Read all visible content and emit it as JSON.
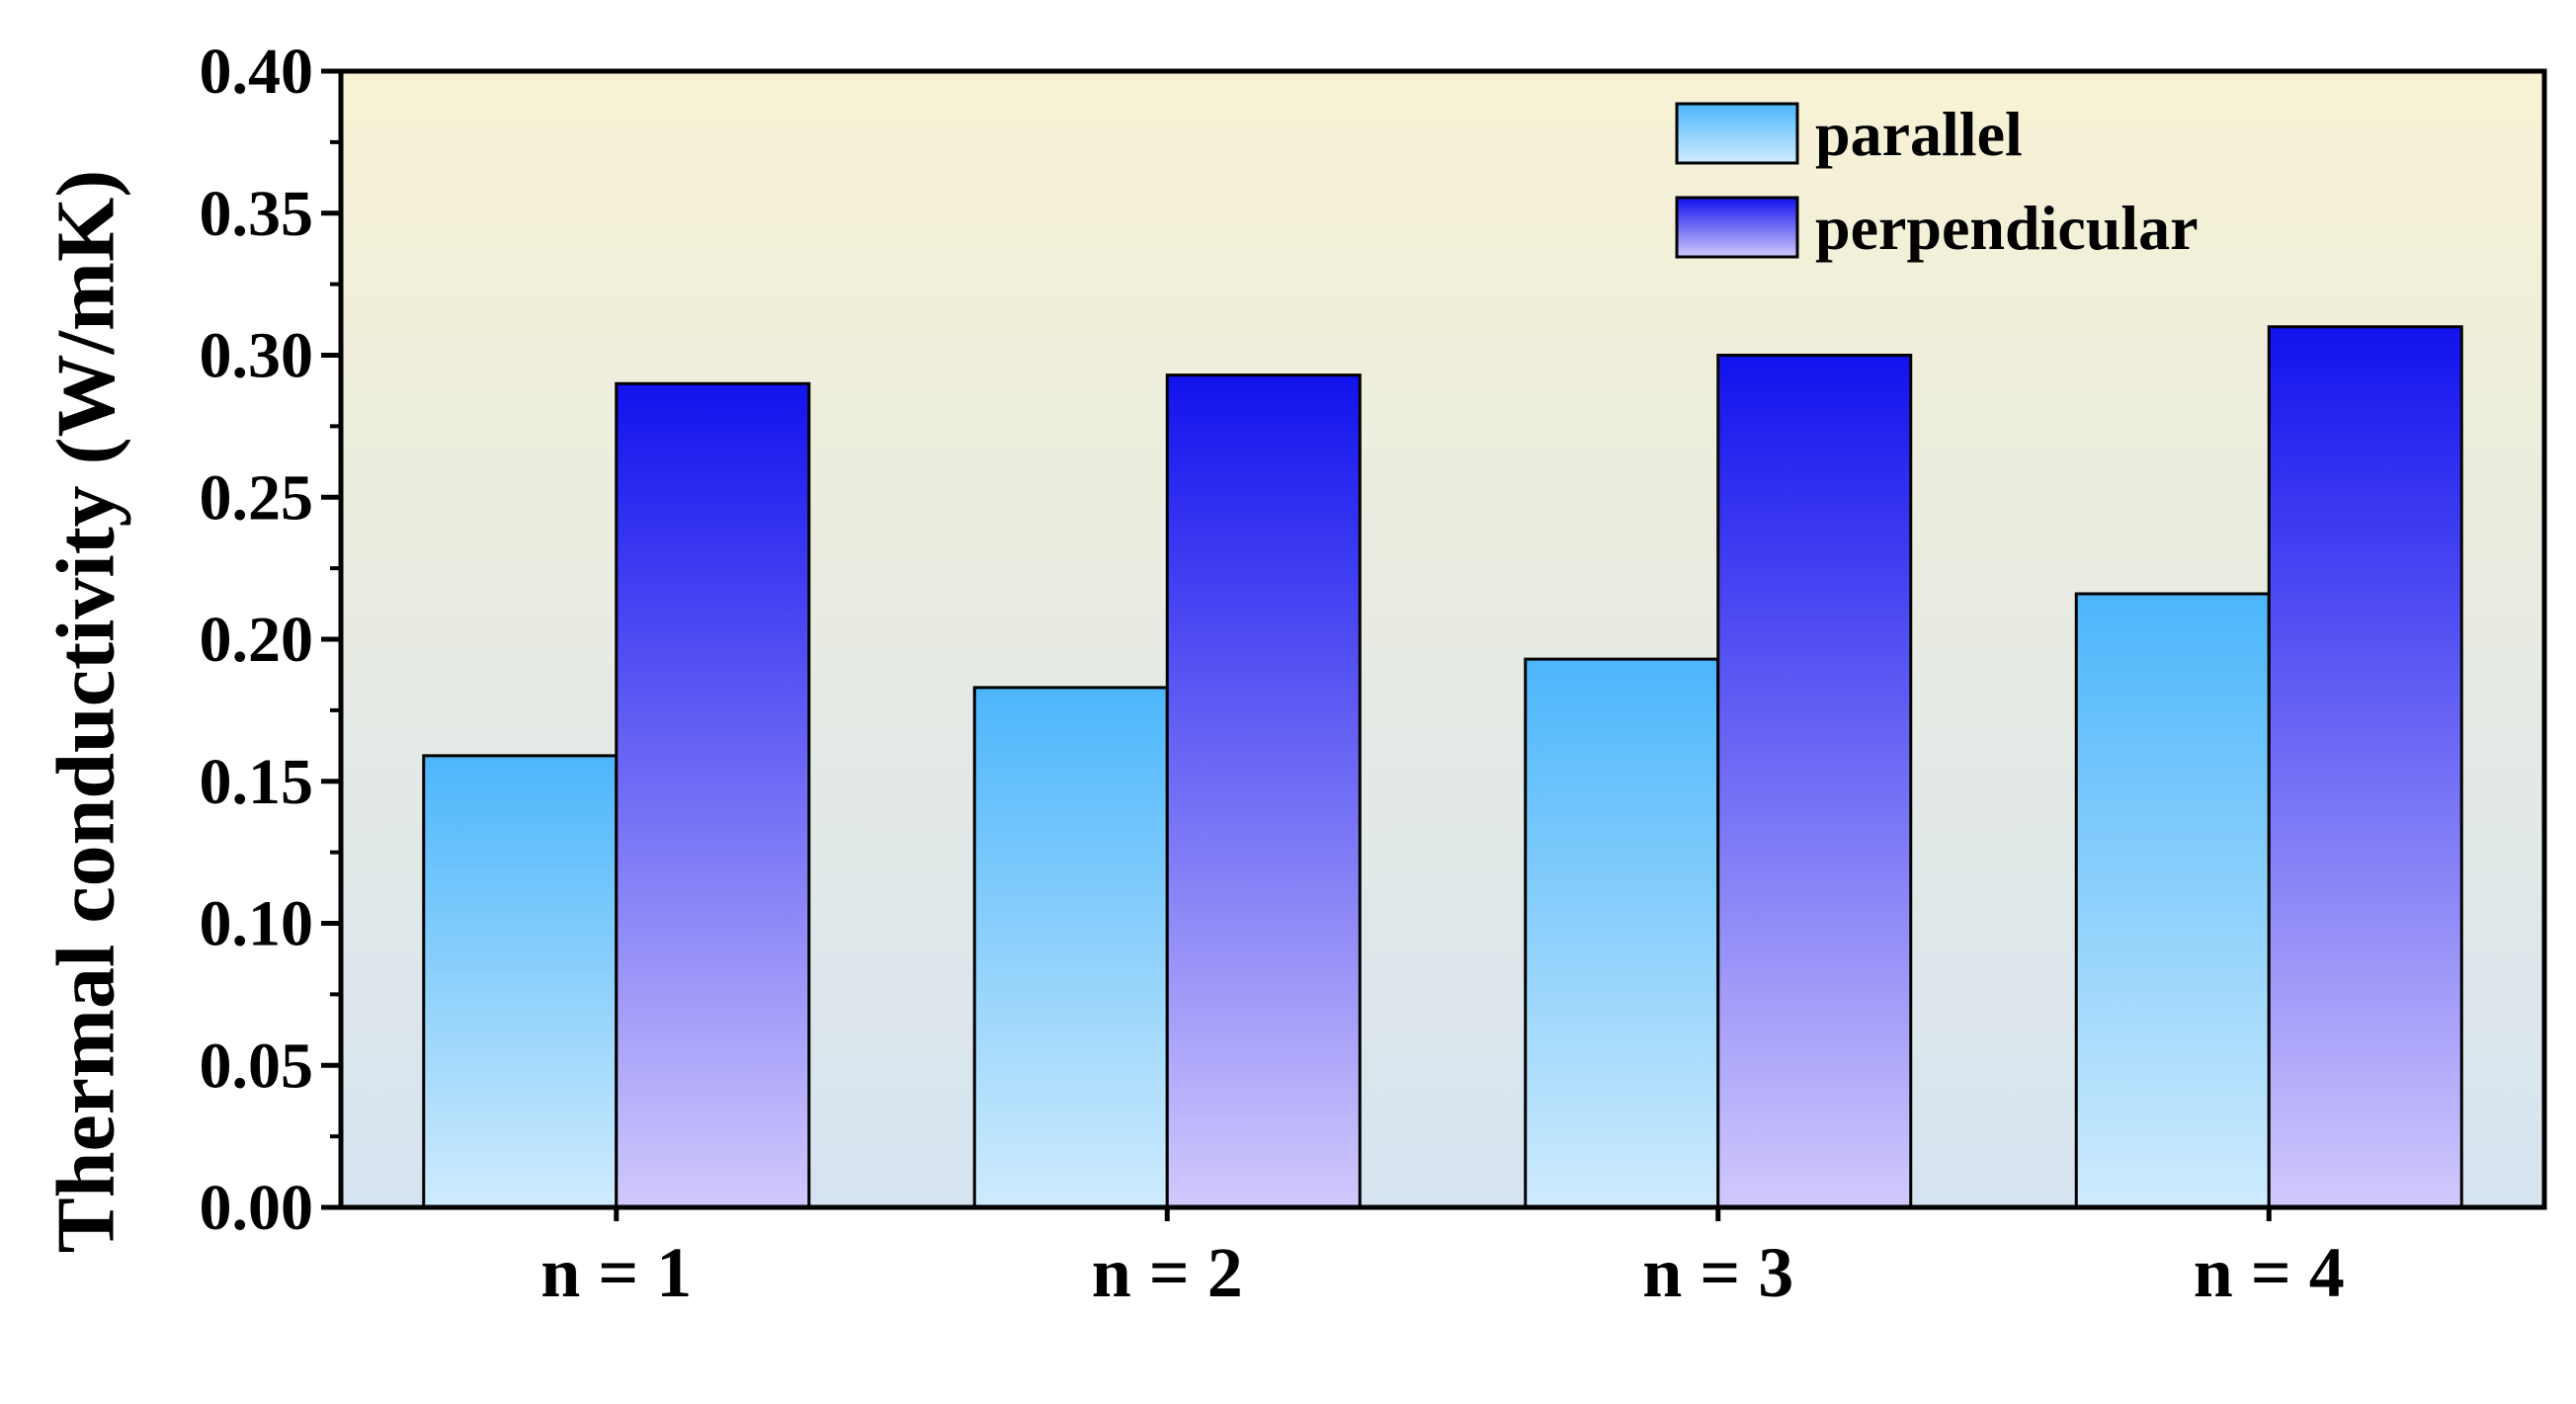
{
  "chart_data": {
    "type": "bar",
    "title": "",
    "xlabel": "",
    "ylabel": "Thermal conductivity (W/mK)",
    "categories": [
      "n = 1",
      "n = 2",
      "n = 3",
      "n = 4"
    ],
    "series": [
      {
        "name": "parallel",
        "values": [
          0.159,
          0.183,
          0.193,
          0.216
        ]
      },
      {
        "name": "perpendicular",
        "values": [
          0.29,
          0.293,
          0.3,
          0.31
        ]
      }
    ],
    "ylim": [
      0.0,
      0.4
    ],
    "yticks": [
      "0.00",
      "0.05",
      "0.10",
      "0.15",
      "0.20",
      "0.25",
      "0.30",
      "0.35",
      "0.40"
    ],
    "ytick_values": [
      0.0,
      0.05,
      0.1,
      0.15,
      0.2,
      0.25,
      0.3,
      0.35,
      0.4
    ],
    "grid": false,
    "legend_position": "top-right"
  },
  "colors": {
    "background_top": "#f8f2d4",
    "background_bottom": "#d6e4f1",
    "parallel_top": "#4cb6fb",
    "parallel_bottom": "#cfebfd",
    "perpendicular_top": "#1212ee",
    "perpendicular_bottom": "#d1c9fc",
    "axis": "#000000"
  }
}
